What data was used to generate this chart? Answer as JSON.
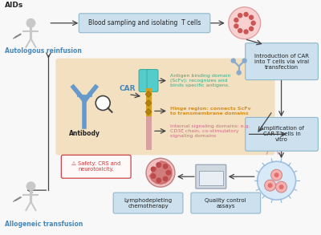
{
  "bg_color": "#f8f8f8",
  "box_color": "#cce0ee",
  "box_edge": "#90b8cc",
  "center_bg": "#f2e0c0",
  "text_blue": "#4488bb",
  "text_teal": "#3aaa88",
  "text_orange": "#d89020",
  "text_pink": "#d06888",
  "text_red": "#cc3333",
  "text_dark": "#222222",
  "label_aids": "AIDs",
  "label_autologous": "Autologous reinfusion",
  "label_allogeneic": "Allogeneic transfusion",
  "label_blood": "Blood sampling and isolating  T cells",
  "label_intro": "Introduction of CAR\ninto T cells via viral\ntransfection",
  "label_amplification": "Amplification of\nCAR-T cells in\nvitro",
  "label_qc": "Quality control\nassays",
  "label_lympho": "Lymphodepleting\nchemotherapy",
  "label_safety": "⚠ Safety: CRS and\nneurotoxicity.",
  "label_car": "CAR",
  "label_antibody": "Antibody",
  "label_antigen": "Antigen binding domain\n(ScFv): recognizes and\nbinds specific antigens.",
  "label_hinge": "Hinge region: connects ScFv\nto transmembrane domains",
  "label_internal": "Internal signaling domains: e.g.\nCD3ζ chain, co-stimulatory\nsignaling domains",
  "person_color": "#c8c8c8",
  "arrow_color": "#444444"
}
